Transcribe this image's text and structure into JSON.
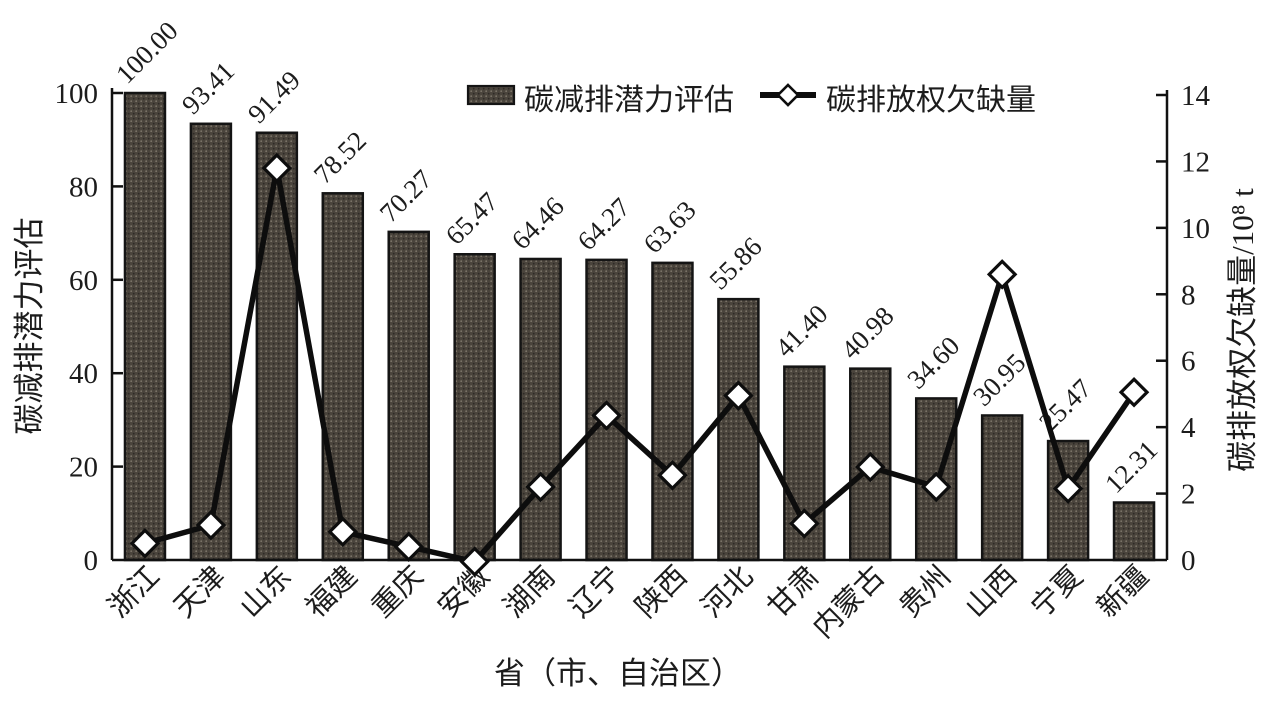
{
  "figure": {
    "background": "#ffffff"
  },
  "chart_data": {
    "type": "bar",
    "subtype": "bar+line combo, dual y-axis",
    "categories": [
      "浙江",
      "天津",
      "山东",
      "福建",
      "重庆",
      "安徽",
      "湖南",
      "辽宁",
      "陕西",
      "河北",
      "甘肃",
      "内蒙古",
      "贵州",
      "山西",
      "宁夏",
      "新疆"
    ],
    "series": [
      {
        "name": "碳减排潜力评估",
        "type": "bar",
        "yaxis": "left",
        "values": [
          100.0,
          93.41,
          91.49,
          78.52,
          70.27,
          65.47,
          64.46,
          64.27,
          63.63,
          55.86,
          41.4,
          40.98,
          34.6,
          30.95,
          25.47,
          12.31
        ],
        "labels": [
          "100.00",
          "93.41",
          "91.49",
          "78.52",
          "70.27",
          "65.47",
          "64.46",
          "64.27",
          "63.63",
          "55.86",
          "41.40",
          "40.98",
          "34.60",
          "30.95",
          "25.47",
          "12.31"
        ]
      },
      {
        "name": "碳排放权欠缺量",
        "type": "line",
        "yaxis": "right",
        "marker": "diamond",
        "values": [
          0.5,
          1.05,
          11.8,
          0.85,
          0.4,
          -0.05,
          2.2,
          4.35,
          2.55,
          4.95,
          1.1,
          2.8,
          2.2,
          8.6,
          2.15,
          5.05
        ]
      }
    ],
    "xlabel": "省（市、自治区）",
    "ylabel_left": "碳减排潜力评估",
    "ylabel_right": "碳排放权欠缺量/10⁸ t",
    "ylim_left": [
      0,
      100
    ],
    "ylim_right": [
      0,
      14
    ],
    "yticks_left": [
      "0",
      "20",
      "40",
      "60",
      "80",
      "100"
    ],
    "yticks_right": [
      "0",
      "2",
      "4",
      "6",
      "8",
      "10",
      "12",
      "14"
    ],
    "grid": false,
    "legend_position": "top-center",
    "legend": [
      "碳减排潜力评估",
      "碳排放权欠缺量"
    ],
    "colors": {
      "bar_fill_base": "#4a443c",
      "bar_dot_light": "#7d756a",
      "bar_dot_dark": "#2e2a26",
      "bar_stroke": "#141414",
      "line": "#0d0d0d",
      "marker_fill": "#ffffff",
      "marker_stroke": "#0d0d0d",
      "text": "#1c1c1c"
    }
  }
}
